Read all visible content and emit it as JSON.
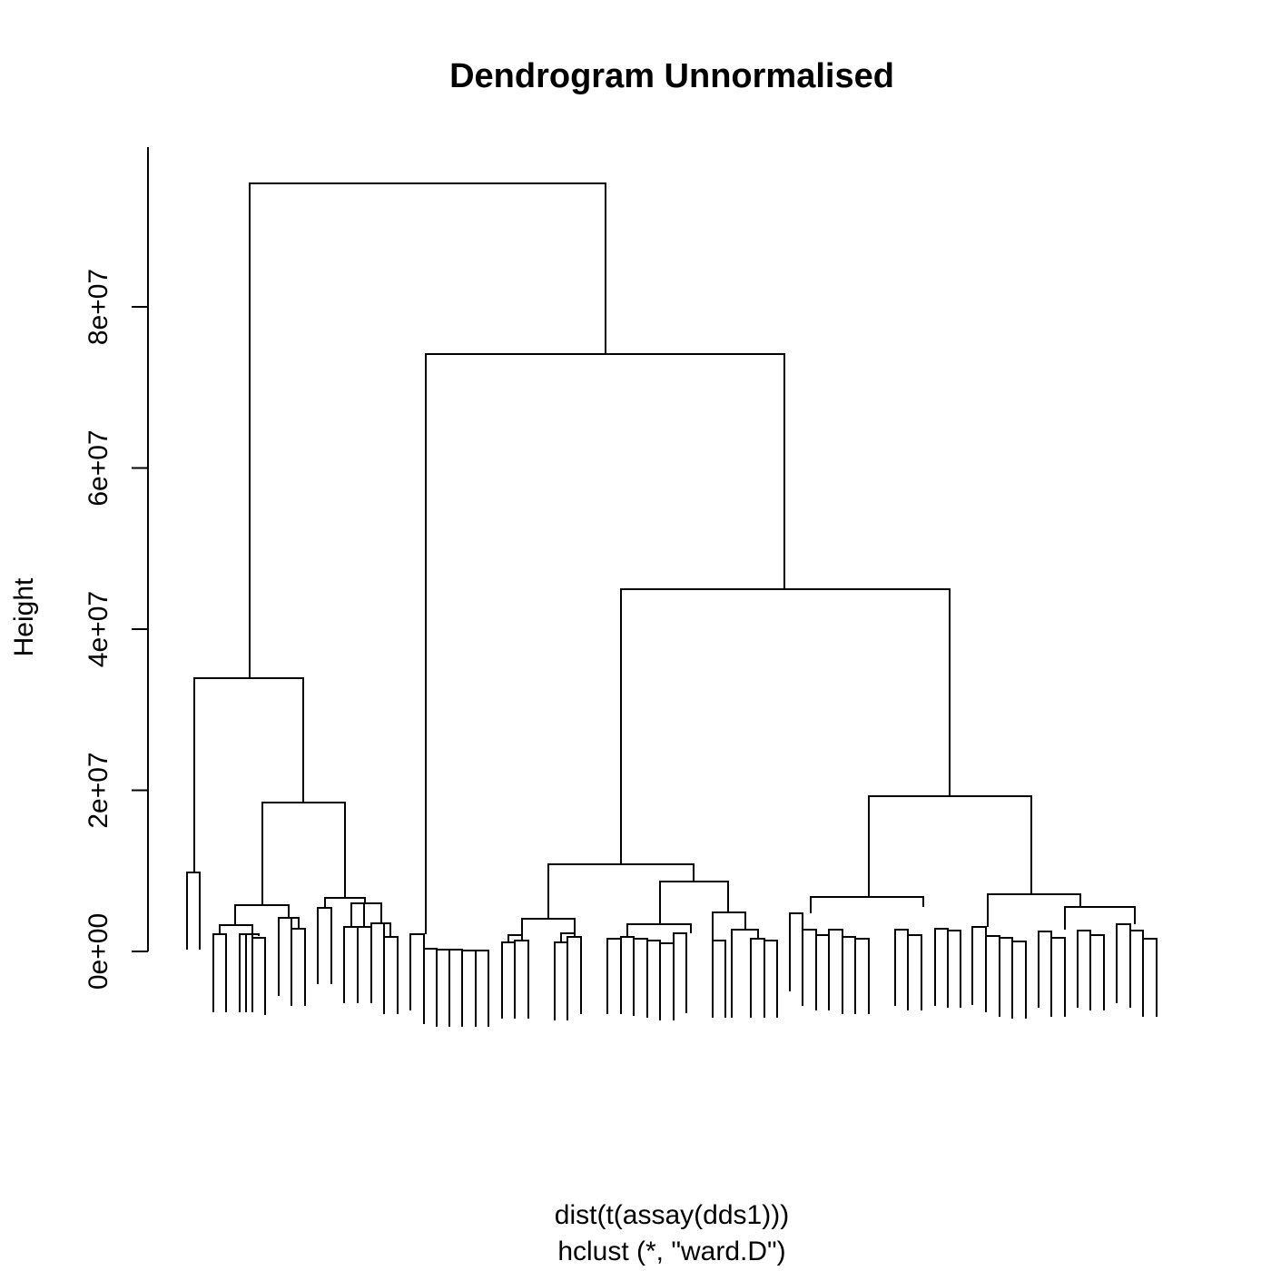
{
  "chart_data": {
    "type": "dendrogram",
    "title": "Dendrogram Unnormalised",
    "ylabel": "Height",
    "xlabel": "dist(t(assay(dds1)))",
    "sublabel": "hclust (*, \"ward.D\")",
    "y_ticks": [
      {
        "value": 0,
        "label": "0e+00"
      },
      {
        "value": 20000000,
        "label": "2e+07"
      },
      {
        "value": 40000000,
        "label": "4e+07"
      },
      {
        "value": 60000000,
        "label": "6e+07"
      },
      {
        "value": 80000000,
        "label": "8e+07"
      }
    ],
    "ylim": [
      0,
      95000000
    ],
    "leaf_count": 75,
    "merge_heights": {
      "root": 95500000,
      "left_cluster": 33800000,
      "right_cluster": 74200000,
      "right_right": 45000000,
      "right_right_right": 19200000,
      "right_right_left": 10600000,
      "left_left_right": 18400000
    }
  },
  "colors": {
    "line": "#000000",
    "background": "#ffffff"
  }
}
